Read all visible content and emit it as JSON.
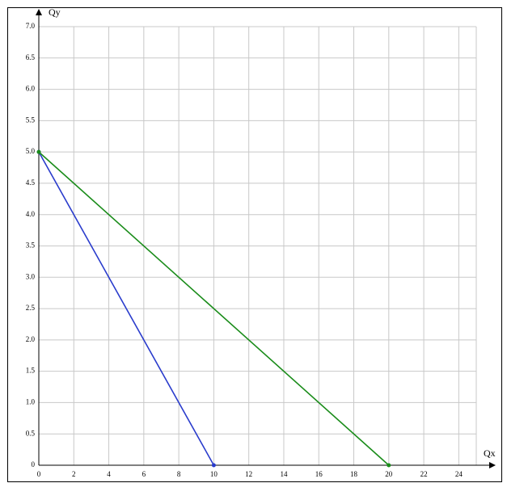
{
  "chart_data": {
    "type": "line",
    "x_label": "Qx",
    "y_label": "Qy",
    "series": [
      {
        "color": "#2a3ccc",
        "x": [
          0,
          10
        ],
        "values": [
          5,
          0
        ]
      },
      {
        "color": "#1a8c1a",
        "x": [
          0,
          20
        ],
        "values": [
          5,
          0
        ]
      }
    ],
    "xlim": [
      0,
      25
    ],
    "ylim": [
      0,
      7
    ],
    "xticks": [
      0,
      2,
      4,
      6,
      8,
      10,
      12,
      14,
      16,
      18,
      20,
      22,
      24
    ],
    "yticks": [
      0,
      0.5,
      {
        "value": 1,
        "label": "1.0"
      },
      1.5,
      {
        "value": 2,
        "label": "2.0"
      },
      2.5,
      {
        "value": 3,
        "label": "3.0"
      },
      3.5,
      {
        "value": 4,
        "label": "4.0"
      },
      4.5,
      {
        "value": 5,
        "label": "5.0"
      },
      5.5,
      {
        "value": 6,
        "label": "6.0"
      },
      6.5,
      {
        "value": 7,
        "label": "7.0"
      }
    ],
    "grid": true
  }
}
